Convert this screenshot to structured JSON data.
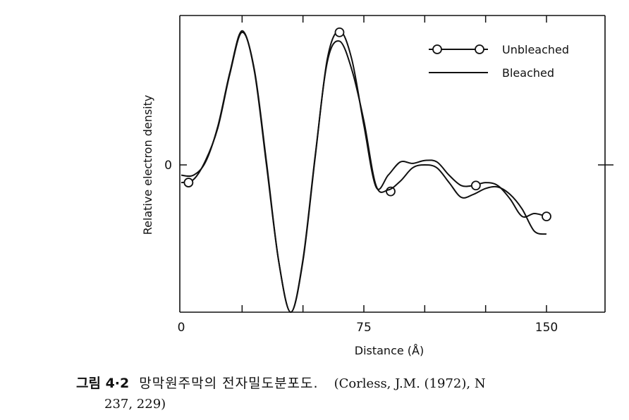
{
  "chart_data": {
    "type": "line",
    "xlabel": "Distance (Å)",
    "ylabel": "Relative electron density",
    "xticks": [
      "0",
      "75",
      "150"
    ],
    "yticks": [
      "0"
    ],
    "xlim": [
      0,
      150
    ],
    "ylim": [
      -1.0,
      1.0
    ],
    "legend": {
      "placement": "top-right",
      "entries": [
        "Unbleached",
        "Bleached"
      ]
    },
    "series": [
      {
        "name": "Unbleached",
        "marker": "open-circle",
        "x": [
          0,
          5,
          10,
          15,
          20,
          25,
          30,
          35,
          40,
          45,
          50,
          55,
          60,
          65,
          70,
          75,
          80,
          85,
          90,
          95,
          100,
          105,
          110,
          115,
          120,
          125,
          130,
          135,
          140,
          145,
          150
        ],
        "y": [
          -0.12,
          -0.1,
          0.03,
          0.25,
          0.62,
          0.9,
          0.65,
          0.02,
          -0.65,
          -1.0,
          -0.65,
          0.05,
          0.72,
          0.91,
          0.72,
          0.27,
          -0.15,
          -0.07,
          0.02,
          0.01,
          0.03,
          0.02,
          -0.07,
          -0.14,
          -0.14,
          -0.12,
          -0.14,
          -0.23,
          -0.35,
          -0.33,
          -0.35
        ],
        "marker_points": [
          [
            3,
            -0.12
          ],
          [
            65,
            0.9
          ],
          [
            86,
            -0.18
          ],
          [
            121,
            -0.14
          ],
          [
            150,
            -0.35
          ]
        ]
      },
      {
        "name": "Bleached",
        "marker": "none",
        "x": [
          0,
          5,
          10,
          15,
          20,
          25,
          30,
          35,
          40,
          45,
          50,
          55,
          60,
          65,
          70,
          75,
          80,
          85,
          90,
          95,
          100,
          105,
          110,
          115,
          120,
          125,
          130,
          135,
          140,
          145,
          150
        ],
        "y": [
          -0.07,
          -0.07,
          0.02,
          0.26,
          0.63,
          0.91,
          0.64,
          0.0,
          -0.65,
          -1.0,
          -0.64,
          0.06,
          0.7,
          0.84,
          0.65,
          0.3,
          -0.14,
          -0.17,
          -0.11,
          -0.02,
          0.0,
          -0.02,
          -0.12,
          -0.22,
          -0.2,
          -0.16,
          -0.15,
          -0.2,
          -0.3,
          -0.45,
          -0.47
        ]
      }
    ]
  },
  "caption": {
    "figure_label": "그림 4·2",
    "title_ko": "망막원주막의 전자밀도분포도.",
    "reference": "(Corless, J.M. (1972), N",
    "reference_cont": "237, 229)"
  }
}
